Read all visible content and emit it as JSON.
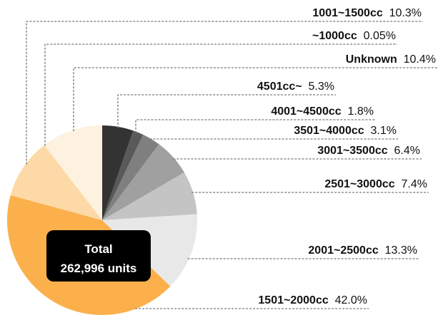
{
  "chart_data": {
    "type": "pie",
    "categories": [
      "4501cc~",
      "4001~4500cc",
      "3501~4000cc",
      "3001~3500cc",
      "2501~3000cc",
      "2001~2500cc",
      "1501~2000cc",
      "1001~1500cc",
      "~1000cc",
      "Unknown"
    ],
    "values": [
      5.3,
      1.8,
      3.1,
      6.4,
      7.4,
      13.3,
      42.0,
      10.3,
      0.05,
      10.4
    ],
    "value_labels": [
      "5.3%",
      "1.8%",
      "3.1%",
      "6.4%",
      "7.4%",
      "13.3%",
      "42.0%",
      "10.3%",
      "0.05%",
      "10.4%"
    ],
    "colors": [
      "#333333",
      "#595959",
      "#7f7f7f",
      "#a0a0a0",
      "#c4c4c4",
      "#e8e8e8",
      "#fbb04c",
      "#fdd9a8",
      "#fde6c4",
      "#fdf2e0"
    ],
    "center_title": "Total",
    "center_value": "262,996 units"
  }
}
